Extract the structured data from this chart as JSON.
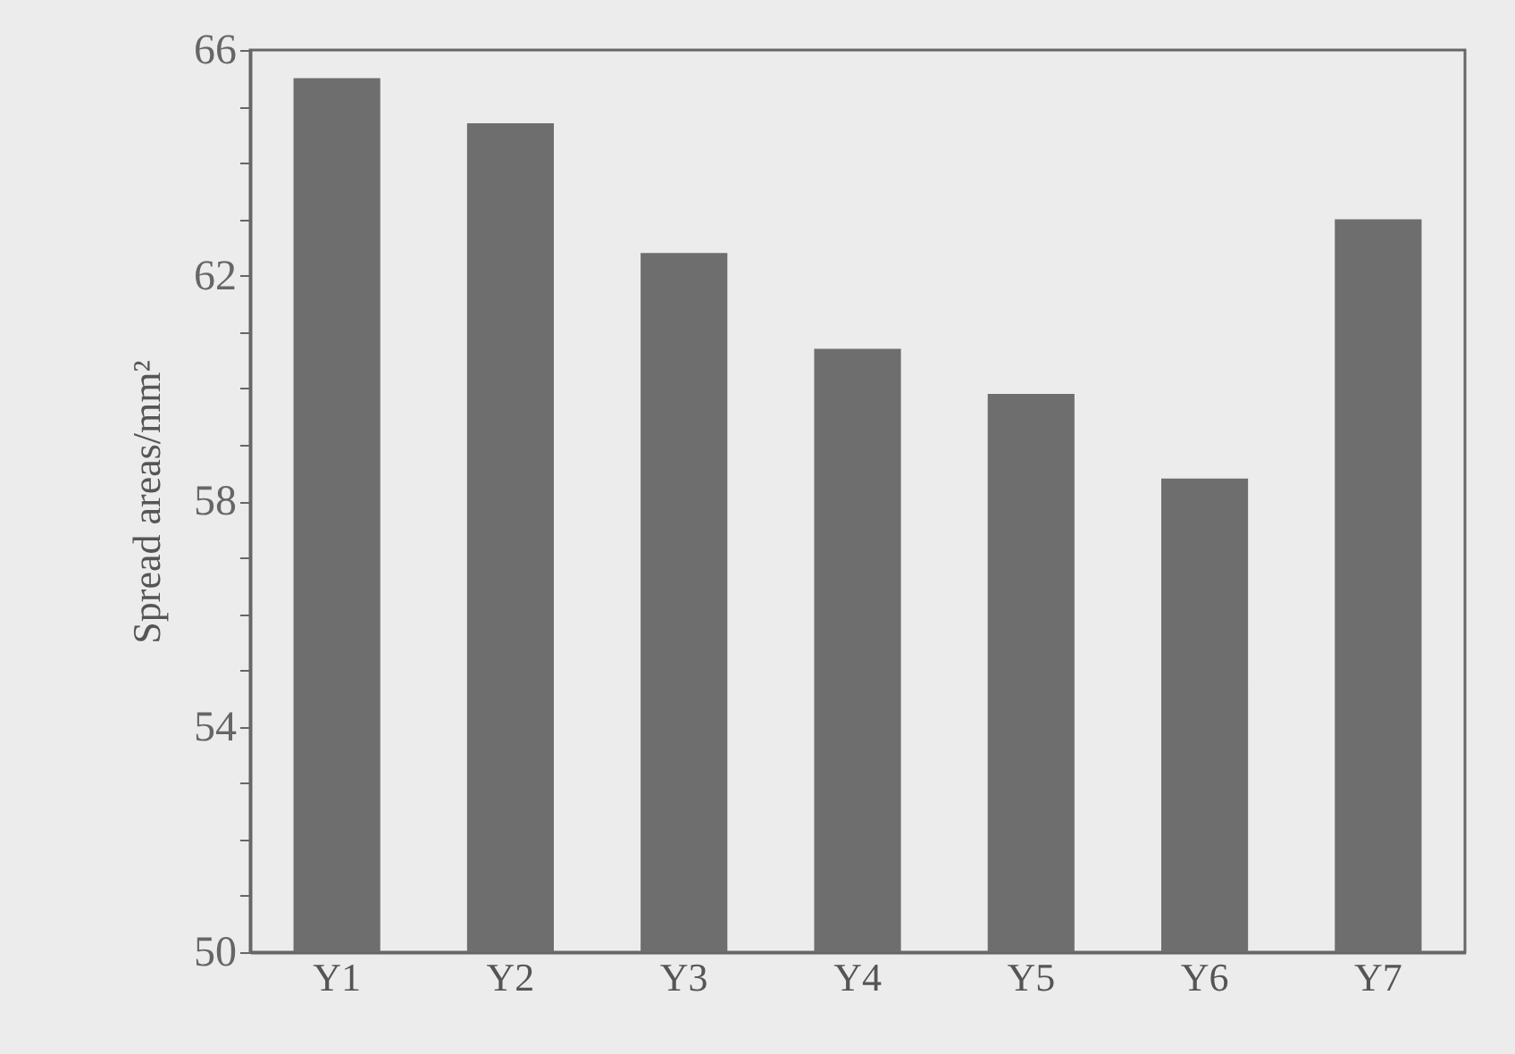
{
  "chart_data": {
    "type": "bar",
    "ylabel": "Spread areas/mm²",
    "categories": [
      "Y1",
      "Y2",
      "Y3",
      "Y4",
      "Y5",
      "Y6",
      "Y7"
    ],
    "values": [
      65.5,
      64.7,
      62.4,
      60.7,
      59.9,
      58.4,
      63.0
    ],
    "color": "#6e6e6e",
    "ylim": [
      50,
      66
    ],
    "yticks": [
      50,
      {
        "value": 51,
        "label": null
      },
      {
        "value": 52,
        "label": null
      },
      {
        "value": 53,
        "label": null
      },
      54,
      {
        "value": 55,
        "label": null
      },
      {
        "value": 56,
        "label": null
      },
      {
        "value": 57,
        "label": null
      },
      58,
      {
        "value": 59,
        "label": null
      },
      {
        "value": 60,
        "label": null
      },
      {
        "value": 61,
        "label": null
      },
      62,
      {
        "value": 63,
        "label": null
      },
      {
        "value": 64,
        "label": null
      },
      {
        "value": 65,
        "label": null
      },
      66
    ],
    "grid": false
  }
}
